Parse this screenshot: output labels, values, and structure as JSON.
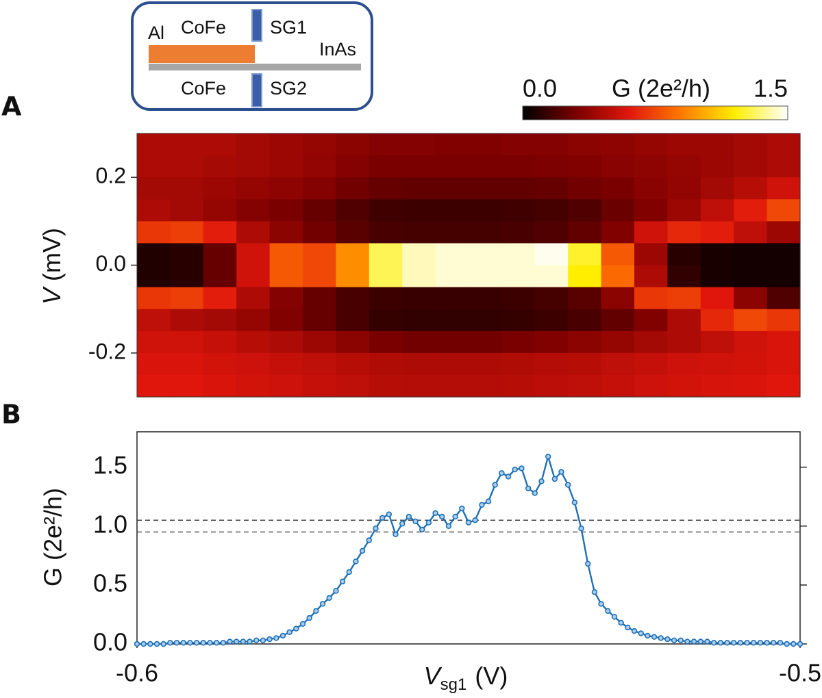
{
  "chart_data": [
    {
      "type": "heatmap",
      "panel_label": "A",
      "ylabel": {
        "symbol": "V",
        "unit": "(mV)"
      },
      "xlim": [
        -0.6,
        -0.5
      ],
      "ylim": [
        -0.3,
        0.3
      ],
      "yticks": [
        0.2,
        {
          "value": 0,
          "label": "0.0"
        },
        -0.2
      ],
      "x": [
        -0.5975,
        -0.5925,
        -0.5875,
        -0.5825,
        -0.5775,
        -0.5725,
        -0.5675,
        -0.5625,
        -0.5575,
        -0.5525,
        -0.5475,
        -0.5425,
        -0.5375,
        -0.5325,
        -0.5275,
        -0.5225,
        -0.5175,
        -0.5125,
        -0.5075,
        -0.5025
      ],
      "y": [
        0.275,
        0.225,
        0.175,
        0.125,
        0.075,
        0.025,
        -0.025,
        -0.075,
        -0.125,
        -0.175,
        -0.225,
        -0.275
      ],
      "z": [
        [
          0.45,
          0.45,
          0.45,
          0.42,
          0.4,
          0.38,
          0.35,
          0.33,
          0.33,
          0.32,
          0.32,
          0.33,
          0.33,
          0.35,
          0.36,
          0.38,
          0.4,
          0.4,
          0.42,
          0.45
        ],
        [
          0.45,
          0.45,
          0.43,
          0.42,
          0.4,
          0.37,
          0.33,
          0.3,
          0.3,
          0.3,
          0.3,
          0.3,
          0.31,
          0.32,
          0.34,
          0.36,
          0.38,
          0.4,
          0.42,
          0.45
        ],
        [
          0.42,
          0.42,
          0.4,
          0.38,
          0.36,
          0.33,
          0.28,
          0.25,
          0.24,
          0.24,
          0.24,
          0.24,
          0.25,
          0.28,
          0.3,
          0.34,
          0.37,
          0.42,
          0.48,
          0.55
        ],
        [
          0.45,
          0.42,
          0.38,
          0.33,
          0.3,
          0.25,
          0.2,
          0.16,
          0.15,
          0.15,
          0.15,
          0.16,
          0.17,
          0.2,
          0.26,
          0.32,
          0.4,
          0.5,
          0.62,
          0.75
        ],
        [
          0.7,
          0.72,
          0.62,
          0.45,
          0.35,
          0.28,
          0.22,
          0.18,
          0.17,
          0.17,
          0.17,
          0.18,
          0.2,
          0.24,
          0.32,
          0.55,
          0.65,
          0.62,
          0.5,
          0.4
        ],
        [
          0.08,
          0.1,
          0.25,
          0.55,
          0.8,
          0.75,
          0.95,
          1.3,
          1.42,
          1.45,
          1.45,
          1.45,
          1.48,
          1.25,
          0.8,
          0.4,
          0.1,
          0.06,
          0.05,
          0.05
        ],
        [
          0.08,
          0.1,
          0.25,
          0.55,
          0.8,
          0.75,
          0.95,
          1.3,
          1.42,
          1.45,
          1.45,
          1.45,
          1.45,
          1.2,
          0.85,
          0.45,
          0.12,
          0.06,
          0.05,
          0.05
        ],
        [
          0.7,
          0.72,
          0.62,
          0.45,
          0.33,
          0.25,
          0.18,
          0.15,
          0.14,
          0.14,
          0.14,
          0.15,
          0.17,
          0.22,
          0.35,
          0.7,
          0.72,
          0.6,
          0.35,
          0.2
        ],
        [
          0.5,
          0.45,
          0.42,
          0.38,
          0.32,
          0.25,
          0.18,
          0.13,
          0.12,
          0.12,
          0.12,
          0.13,
          0.15,
          0.18,
          0.24,
          0.32,
          0.45,
          0.65,
          0.75,
          0.7
        ],
        [
          0.55,
          0.55,
          0.52,
          0.48,
          0.45,
          0.4,
          0.35,
          0.3,
          0.28,
          0.28,
          0.28,
          0.3,
          0.32,
          0.35,
          0.38,
          0.42,
          0.45,
          0.5,
          0.55,
          0.58
        ],
        [
          0.58,
          0.58,
          0.56,
          0.54,
          0.52,
          0.5,
          0.48,
          0.46,
          0.45,
          0.45,
          0.45,
          0.46,
          0.47,
          0.48,
          0.5,
          0.52,
          0.54,
          0.55,
          0.56,
          0.58
        ],
        [
          0.6,
          0.6,
          0.58,
          0.56,
          0.54,
          0.52,
          0.5,
          0.48,
          0.47,
          0.47,
          0.47,
          0.48,
          0.49,
          0.5,
          0.52,
          0.54,
          0.56,
          0.57,
          0.58,
          0.6
        ]
      ],
      "colormap": [
        "#000000",
        "#7a0000",
        "#e0160c",
        "#ff7a00",
        "#ffee00",
        "#ffffff"
      ],
      "colorbar": {
        "label": "G (2e²/h)",
        "zlim": [
          0,
          1.5
        ],
        "ticks": [
          {
            "value": 0,
            "label": "0.0"
          },
          {
            "value": 1.5,
            "label": "1.5"
          }
        ]
      },
      "inset": {
        "labels": [
          "Al",
          "CoFe",
          "SG1",
          "InAs",
          "CoFe",
          "SG2"
        ]
      }
    },
    {
      "type": "line",
      "panel_label": "B",
      "xlabel": {
        "symbol": "V",
        "subscript": "sg1",
        "unit": "(V)"
      },
      "ylabel": "G (2e²/h)",
      "xlim": [
        -0.6,
        -0.5
      ],
      "ylim": [
        0,
        1.8
      ],
      "xticks": [
        -0.6,
        -0.5
      ],
      "yticks": [
        {
          "value": 0,
          "label": "0.0"
        },
        0.5,
        {
          "value": 1,
          "label": "1.0"
        },
        1.5
      ],
      "reference_lines": [
        0.95,
        1.05
      ],
      "color": "#1f6fb5",
      "x": [
        -0.6,
        -0.599,
        -0.598,
        -0.597,
        -0.596,
        -0.595,
        -0.594,
        -0.593,
        -0.592,
        -0.591,
        -0.59,
        -0.589,
        -0.588,
        -0.587,
        -0.586,
        -0.585,
        -0.584,
        -0.583,
        -0.582,
        -0.581,
        -0.58,
        -0.579,
        -0.578,
        -0.577,
        -0.576,
        -0.575,
        -0.574,
        -0.573,
        -0.572,
        -0.571,
        -0.57,
        -0.569,
        -0.568,
        -0.567,
        -0.566,
        -0.565,
        -0.564,
        -0.563,
        -0.562,
        -0.561,
        -0.56,
        -0.559,
        -0.558,
        -0.557,
        -0.556,
        -0.555,
        -0.554,
        -0.553,
        -0.552,
        -0.551,
        -0.55,
        -0.549,
        -0.548,
        -0.547,
        -0.546,
        -0.545,
        -0.544,
        -0.543,
        -0.542,
        -0.541,
        -0.54,
        -0.539,
        -0.538,
        -0.537,
        -0.536,
        -0.535,
        -0.534,
        -0.533,
        -0.532,
        -0.531,
        -0.53,
        -0.529,
        -0.528,
        -0.527,
        -0.526,
        -0.525,
        -0.524,
        -0.523,
        -0.522,
        -0.521,
        -0.52,
        -0.519,
        -0.518,
        -0.517,
        -0.516,
        -0.515,
        -0.514,
        -0.513,
        -0.512,
        -0.511,
        -0.51,
        -0.509,
        -0.508,
        -0.507,
        -0.506,
        -0.505,
        -0.504,
        -0.503,
        -0.502,
        -0.501,
        -0.5
      ],
      "values": [
        0.0,
        0.0,
        0.0,
        0.0,
        0.0,
        0.01,
        0.01,
        0.01,
        0.01,
        0.01,
        0.01,
        0.01,
        0.01,
        0.01,
        0.02,
        0.02,
        0.02,
        0.02,
        0.03,
        0.03,
        0.04,
        0.05,
        0.07,
        0.1,
        0.13,
        0.17,
        0.22,
        0.28,
        0.34,
        0.39,
        0.45,
        0.53,
        0.61,
        0.7,
        0.79,
        0.88,
        0.98,
        1.07,
        1.1,
        0.93,
        1.02,
        1.08,
        1.04,
        0.97,
        1.03,
        1.11,
        1.08,
        1.0,
        1.08,
        1.15,
        1.03,
        1.05,
        1.18,
        1.21,
        1.35,
        1.45,
        1.42,
        1.48,
        1.49,
        1.32,
        1.28,
        1.38,
        1.59,
        1.4,
        1.46,
        1.35,
        1.2,
        0.98,
        0.68,
        0.44,
        0.34,
        0.28,
        0.23,
        0.18,
        0.14,
        0.11,
        0.09,
        0.07,
        0.06,
        0.05,
        0.04,
        0.03,
        0.03,
        0.02,
        0.02,
        0.02,
        0.02,
        0.01,
        0.01,
        0.01,
        0.01,
        0.01,
        0.01,
        0.01,
        0.01,
        0.01,
        0.01,
        0.01,
        0.0,
        0.0,
        0.0
      ]
    }
  ]
}
